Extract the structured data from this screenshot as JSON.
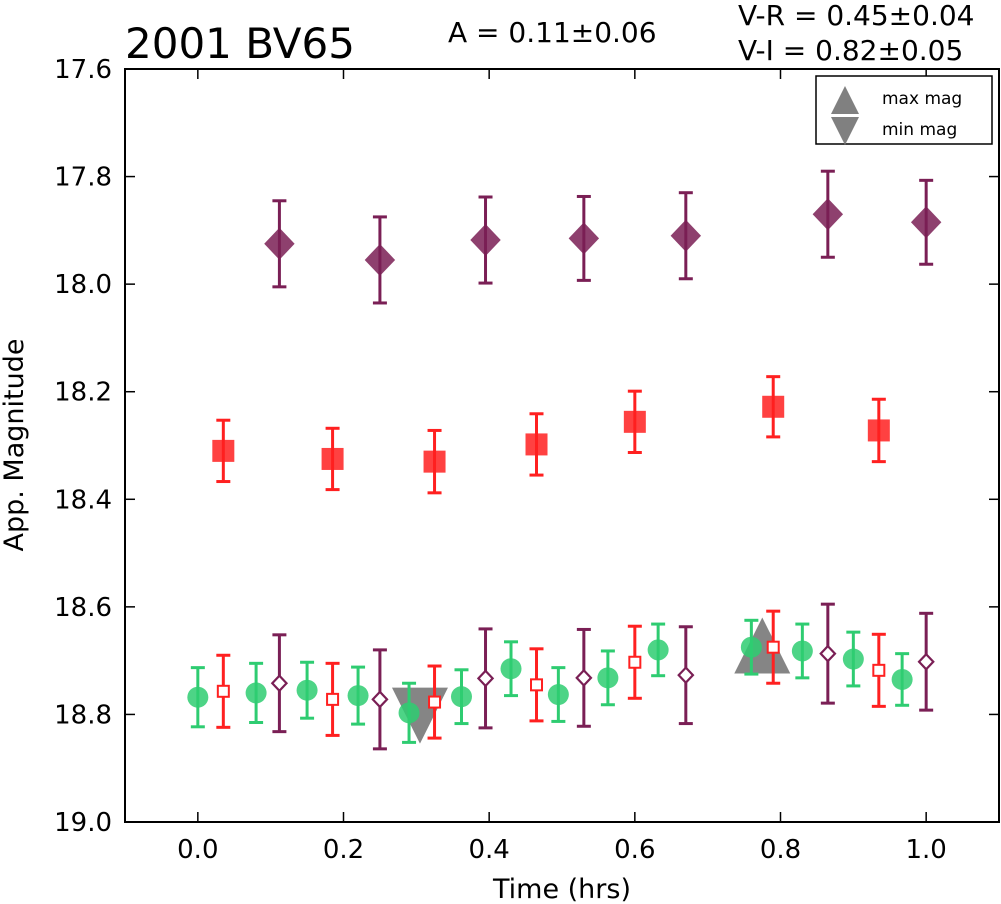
{
  "chart_data": {
    "type": "scatter",
    "title": "2001 BV65",
    "annotations": [
      "A  = 0.11±0.06",
      "V-R = 0.45±0.04",
      "V-I  = 0.82±0.05"
    ],
    "xlabel": "Time (hrs)",
    "ylabel": "App. Magnitude",
    "xlim": [
      -0.1,
      1.1
    ],
    "ylim": [
      19.0,
      17.6
    ],
    "y_inverted": true,
    "grid": false,
    "legend_position": "top-right",
    "x_ticks": [
      "0.0",
      "0.2",
      "0.4",
      "0.6",
      "0.8",
      "1.0"
    ],
    "y_ticks": [
      "17.6",
      "17.8",
      "18.0",
      "18.2",
      "18.4",
      "18.6",
      "18.8",
      "19.0"
    ],
    "legend": [
      {
        "label": "max mag",
        "marker": "triangle-up"
      },
      {
        "label": "min mag",
        "marker": "triangle-down"
      }
    ],
    "colors": {
      "green": "#2ecc71",
      "red": "#ff2020",
      "purple": "#7a1f55",
      "extrema": "#707070"
    },
    "series": [
      {
        "marker": "square",
        "fill": "filled",
        "color": "#ff2020",
        "points": [
          {
            "x": 0.035,
            "y": 18.31,
            "err": 0.057
          },
          {
            "x": 0.185,
            "y": 18.325,
            "err": 0.057
          },
          {
            "x": 0.325,
            "y": 18.33,
            "err": 0.058
          },
          {
            "x": 0.465,
            "y": 18.298,
            "err": 0.057
          },
          {
            "x": 0.6,
            "y": 18.256,
            "err": 0.057
          },
          {
            "x": 0.79,
            "y": 18.228,
            "err": 0.056
          },
          {
            "x": 0.935,
            "y": 18.272,
            "err": 0.058
          }
        ]
      },
      {
        "marker": "diamond",
        "fill": "filled",
        "color": "#7a1f55",
        "points": [
          {
            "x": 0.112,
            "y": 17.925,
            "err": 0.08
          },
          {
            "x": 0.25,
            "y": 17.955,
            "err": 0.08
          },
          {
            "x": 0.395,
            "y": 17.918,
            "err": 0.08
          },
          {
            "x": 0.53,
            "y": 17.915,
            "err": 0.078
          },
          {
            "x": 0.67,
            "y": 17.91,
            "err": 0.08
          },
          {
            "x": 0.865,
            "y": 17.87,
            "err": 0.08
          },
          {
            "x": 1.0,
            "y": 17.885,
            "err": 0.078
          }
        ]
      },
      {
        "marker": "circle",
        "fill": "filled",
        "color": "#2ecc71",
        "points": [
          {
            "x": 0.0,
            "y": 18.768,
            "err": 0.055
          },
          {
            "x": 0.08,
            "y": 18.76,
            "err": 0.055
          },
          {
            "x": 0.15,
            "y": 18.755,
            "err": 0.052
          },
          {
            "x": 0.22,
            "y": 18.765,
            "err": 0.053
          },
          {
            "x": 0.29,
            "y": 18.797,
            "err": 0.055
          },
          {
            "x": 0.362,
            "y": 18.767,
            "err": 0.05
          },
          {
            "x": 0.43,
            "y": 18.715,
            "err": 0.05
          },
          {
            "x": 0.495,
            "y": 18.763,
            "err": 0.05
          },
          {
            "x": 0.563,
            "y": 18.732,
            "err": 0.05
          },
          {
            "x": 0.632,
            "y": 18.68,
            "err": 0.048
          },
          {
            "x": 0.76,
            "y": 18.675,
            "err": 0.05
          },
          {
            "x": 0.83,
            "y": 18.682,
            "err": 0.05
          },
          {
            "x": 0.9,
            "y": 18.697,
            "err": 0.05
          },
          {
            "x": 0.967,
            "y": 18.735,
            "err": 0.048
          }
        ]
      },
      {
        "marker": "square",
        "fill": "open",
        "color": "#ff2020",
        "points": [
          {
            "x": 0.035,
            "y": 18.757,
            "err": 0.067
          },
          {
            "x": 0.185,
            "y": 18.772,
            "err": 0.067
          },
          {
            "x": 0.325,
            "y": 18.777,
            "err": 0.067
          },
          {
            "x": 0.465,
            "y": 18.745,
            "err": 0.067
          },
          {
            "x": 0.6,
            "y": 18.703,
            "err": 0.067
          },
          {
            "x": 0.79,
            "y": 18.675,
            "err": 0.067
          },
          {
            "x": 0.935,
            "y": 18.718,
            "err": 0.067
          }
        ]
      },
      {
        "marker": "diamond",
        "fill": "open",
        "color": "#7a1f55",
        "points": [
          {
            "x": 0.112,
            "y": 18.742,
            "err": 0.09
          },
          {
            "x": 0.25,
            "y": 18.772,
            "err": 0.092
          },
          {
            "x": 0.395,
            "y": 18.733,
            "err": 0.092
          },
          {
            "x": 0.53,
            "y": 18.732,
            "err": 0.09
          },
          {
            "x": 0.67,
            "y": 18.727,
            "err": 0.09
          },
          {
            "x": 0.865,
            "y": 18.687,
            "err": 0.092
          },
          {
            "x": 1.0,
            "y": 18.702,
            "err": 0.09
          }
        ]
      }
    ],
    "extrema": [
      {
        "label": "max mag",
        "marker": "triangle-up",
        "x": 0.775,
        "y": 18.677
      },
      {
        "label": "min mag",
        "marker": "triangle-down",
        "x": 0.305,
        "y": 18.797
      }
    ]
  }
}
